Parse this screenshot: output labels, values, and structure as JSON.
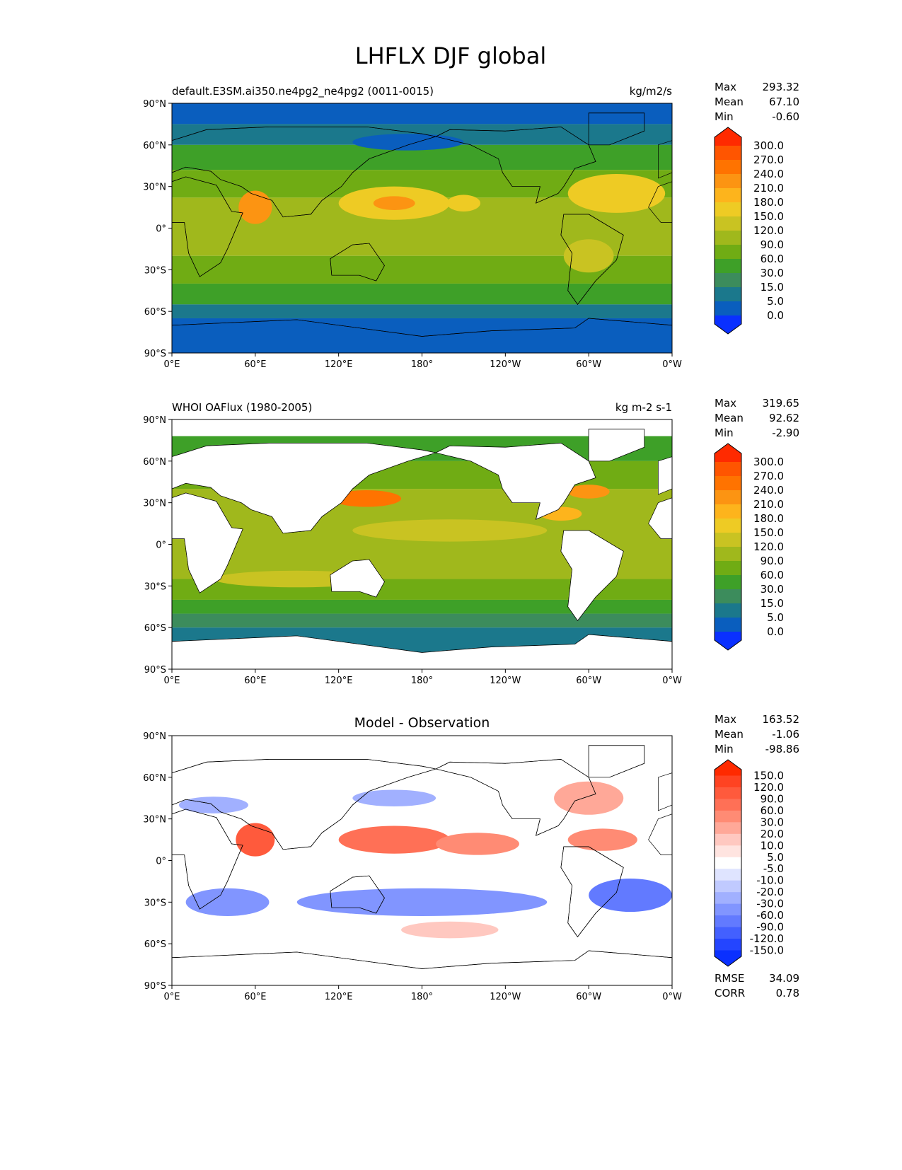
{
  "chart_data": {
    "type": "heatmap",
    "title": "LHFLX DJF global",
    "lon_ticks": [
      "0°E",
      "60°E",
      "120°E",
      "180°",
      "120°W",
      "60°W",
      "0°W"
    ],
    "lat_ticks": [
      "90°N",
      "60°N",
      "30°N",
      "0°",
      "30°S",
      "60°S",
      "90°S"
    ],
    "panels": [
      {
        "name": "model",
        "left_title": "default.E3SM.ai350.ne4pg2_ne4pg2 (0011-0015)",
        "center_title": "",
        "units": "kg/m2/s",
        "stats": [
          {
            "label": "Max",
            "value": "293.32"
          },
          {
            "label": "Mean",
            "value": "67.10"
          },
          {
            "label": "Min",
            "value": "-0.60"
          }
        ],
        "levels": [
          "300.0",
          "270.0",
          "240.0",
          "210.0",
          "180.0",
          "150.0",
          "120.0",
          "90.0",
          "60.0",
          "30.0",
          "15.0",
          "5.0",
          "0.0"
        ],
        "colors": [
          "#ff2a00",
          "#ff5500",
          "#ff7300",
          "#fc9412",
          "#fdb41c",
          "#eecb24",
          "#c9c322",
          "#a0b81c",
          "#70ac14",
          "#3ea028",
          "#3c8c5c",
          "#1b788c",
          "#0a5ebe",
          "#0a30ff"
        ]
      },
      {
        "name": "observation",
        "left_title": "WHOI OAFlux (1980-2005)",
        "center_title": "",
        "units": "kg m-2 s-1",
        "stats": [
          {
            "label": "Max",
            "value": "319.65"
          },
          {
            "label": "Mean",
            "value": "92.62"
          },
          {
            "label": "Min",
            "value": "-2.90"
          }
        ],
        "levels": [
          "300.0",
          "270.0",
          "240.0",
          "210.0",
          "180.0",
          "150.0",
          "120.0",
          "90.0",
          "60.0",
          "30.0",
          "15.0",
          "5.0",
          "0.0"
        ],
        "colors": [
          "#ff2a00",
          "#ff5500",
          "#ff7300",
          "#fc9412",
          "#fdb41c",
          "#eecb24",
          "#c9c322",
          "#a0b81c",
          "#70ac14",
          "#3ea028",
          "#3c8c5c",
          "#1b788c",
          "#0a5ebe",
          "#0a30ff"
        ]
      },
      {
        "name": "difference",
        "left_title": "",
        "center_title": "Model - Observation",
        "units": "",
        "stats": [
          {
            "label": "Max",
            "value": "163.52"
          },
          {
            "label": "Mean",
            "value": "-1.06"
          },
          {
            "label": "Min",
            "value": "-98.86"
          }
        ],
        "levels": [
          "150.0",
          "120.0",
          "90.0",
          "60.0",
          "30.0",
          "20.0",
          "10.0",
          "5.0",
          "-5.0",
          "-10.0",
          "-20.0",
          "-30.0",
          "-60.0",
          "-90.0",
          "-120.0",
          "-150.0"
        ],
        "colors": [
          "#ff2a00",
          "#ff4322",
          "#ff5a3c",
          "#ff7056",
          "#ff8b74",
          "#ffa898",
          "#ffc8c0",
          "#ffe4e0",
          "#ffffff",
          "#dfe4ff",
          "#c0caff",
          "#a1b0ff",
          "#8195ff",
          "#627aff",
          "#4360ff",
          "#2445ff",
          "#0a30ff"
        ],
        "extra_stats": [
          {
            "label": "RMSE",
            "value": "34.09"
          },
          {
            "label": "CORR",
            "value": "0.78"
          }
        ]
      }
    ]
  }
}
